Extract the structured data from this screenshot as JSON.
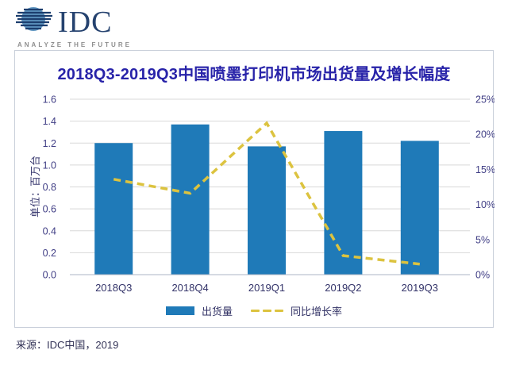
{
  "logo": {
    "name": "IDC",
    "tagline": "ANALYZE THE FUTURE"
  },
  "chart_data": {
    "type": "bar+line",
    "title": "2018Q3-2019Q3中国喷墨打印机市场出货量及增长幅度",
    "categories": [
      "2018Q3",
      "2018Q4",
      "2019Q1",
      "2019Q2",
      "2019Q3"
    ],
    "series": [
      {
        "name": "出货量",
        "type": "bar",
        "axis": "left",
        "values": [
          1.2,
          1.37,
          1.17,
          1.31,
          1.22
        ]
      },
      {
        "name": "同比增长率",
        "type": "line",
        "axis": "right",
        "values": [
          13.6,
          11.6,
          21.6,
          2.7,
          1.5
        ]
      }
    ],
    "left_axis": {
      "label": "单位：百万台",
      "min": 0,
      "max": 1.6,
      "step": 0.2,
      "ticks": [
        "0.0",
        "0.2",
        "0.4",
        "0.6",
        "0.8",
        "1.0",
        "1.2",
        "1.4",
        "1.6"
      ]
    },
    "right_axis": {
      "min": 0,
      "max": 25,
      "step": 5,
      "ticks": [
        "0%",
        "5%",
        "10%",
        "15%",
        "20%",
        "25%"
      ]
    },
    "grid": true,
    "legend_position": "bottom",
    "colors": {
      "bar": "#1F7AB8",
      "line": "#DCC33F",
      "title": "#2823A9",
      "gridline": "#D8D8D8",
      "axis_line": "#AEB6C4"
    }
  },
  "source": "来源：IDC中国，2019"
}
